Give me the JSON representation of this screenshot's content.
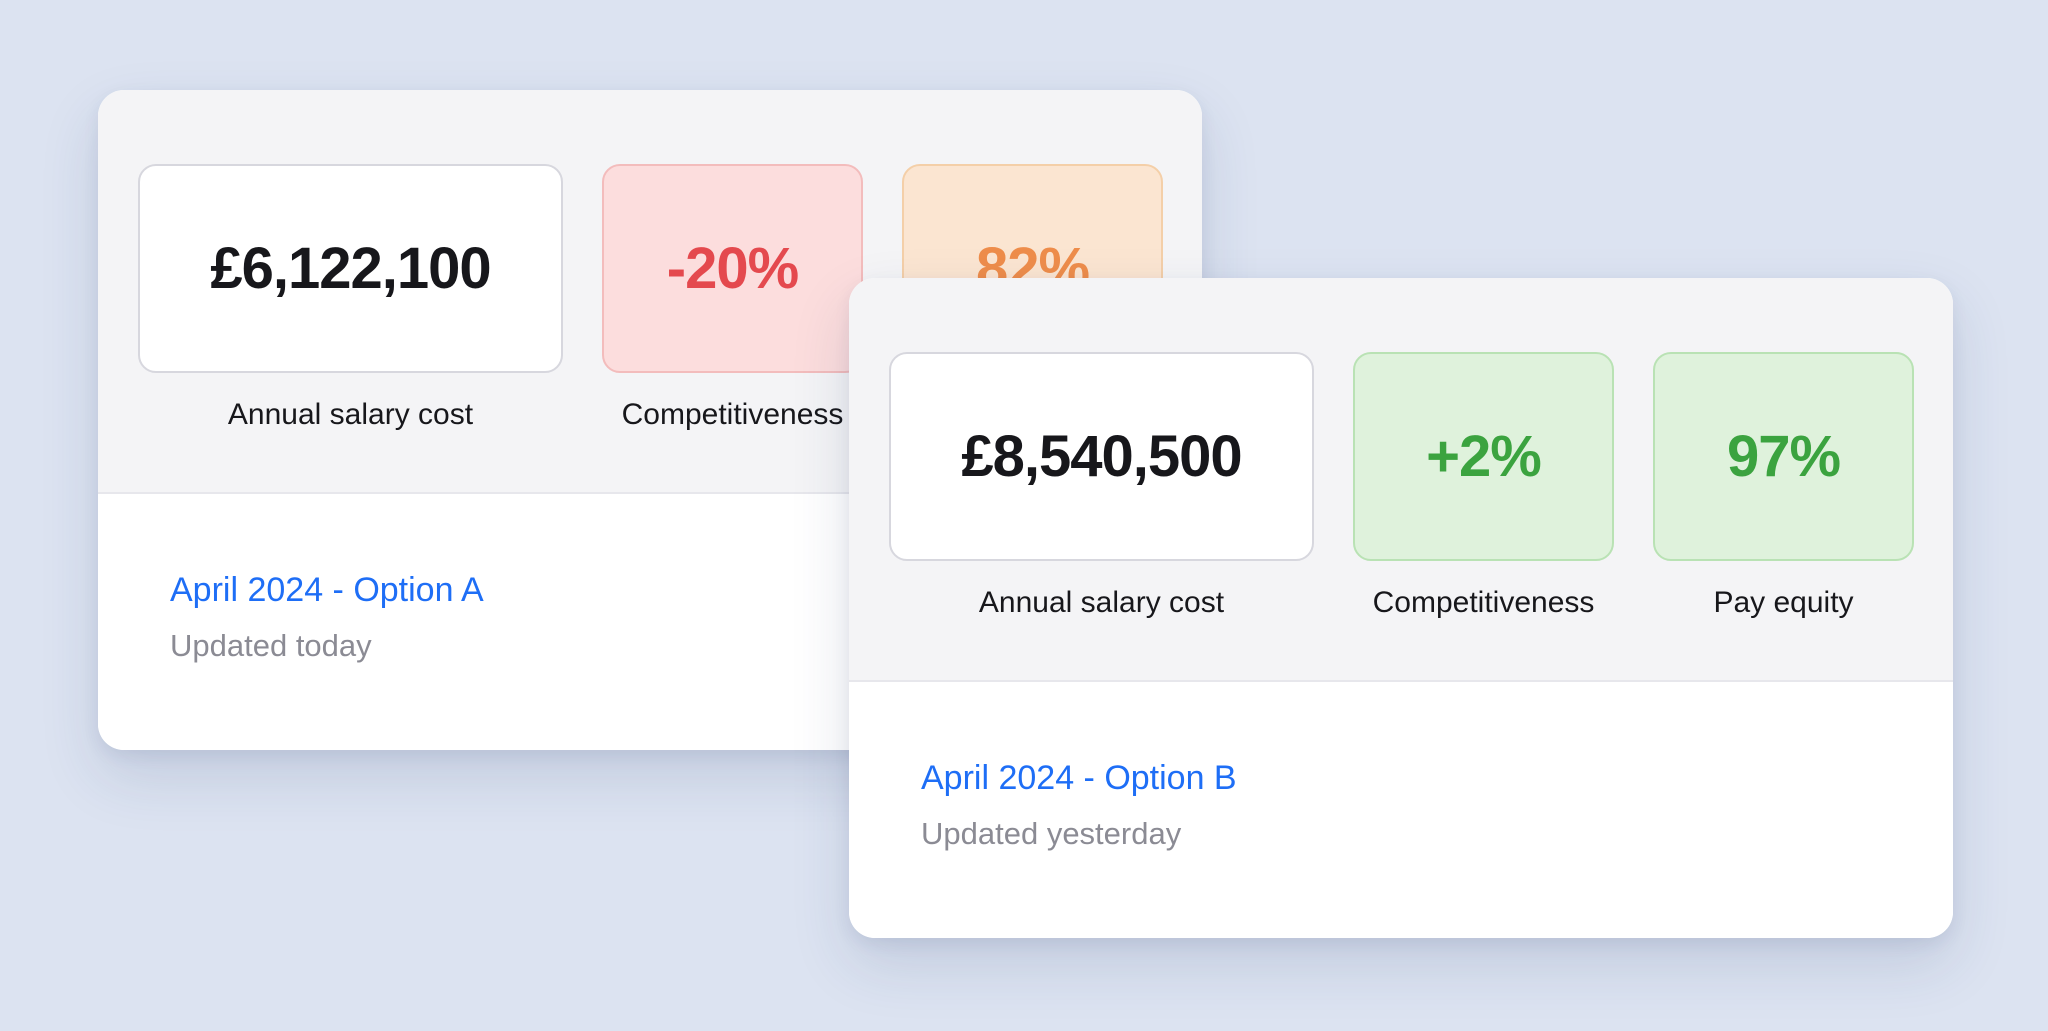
{
  "background_color": "#dce3f1",
  "colors": {
    "card_top_bg": "#f4f4f6",
    "card_bottom_bg": "#ffffff",
    "link_blue": "#1e6ef6",
    "negative_red": "#e4494e",
    "warning_orange": "#ee8d4b",
    "positive_green": "#3ba33f"
  },
  "cards": [
    {
      "title": "April 2024 - Option A",
      "updated": "Updated today",
      "stats": [
        {
          "value": "£6,122,100",
          "label": "Annual salary cost"
        },
        {
          "value": "-20%",
          "label": "Competitiveness"
        },
        {
          "value": "82%",
          "label": ""
        }
      ]
    },
    {
      "title": "April 2024 - Option B",
      "updated": "Updated yesterday",
      "stats": [
        {
          "value": "£8,540,500",
          "label": "Annual salary cost"
        },
        {
          "value": "+2%",
          "label": "Competitiveness"
        },
        {
          "value": "97%",
          "label": "Pay equity"
        }
      ]
    }
  ]
}
